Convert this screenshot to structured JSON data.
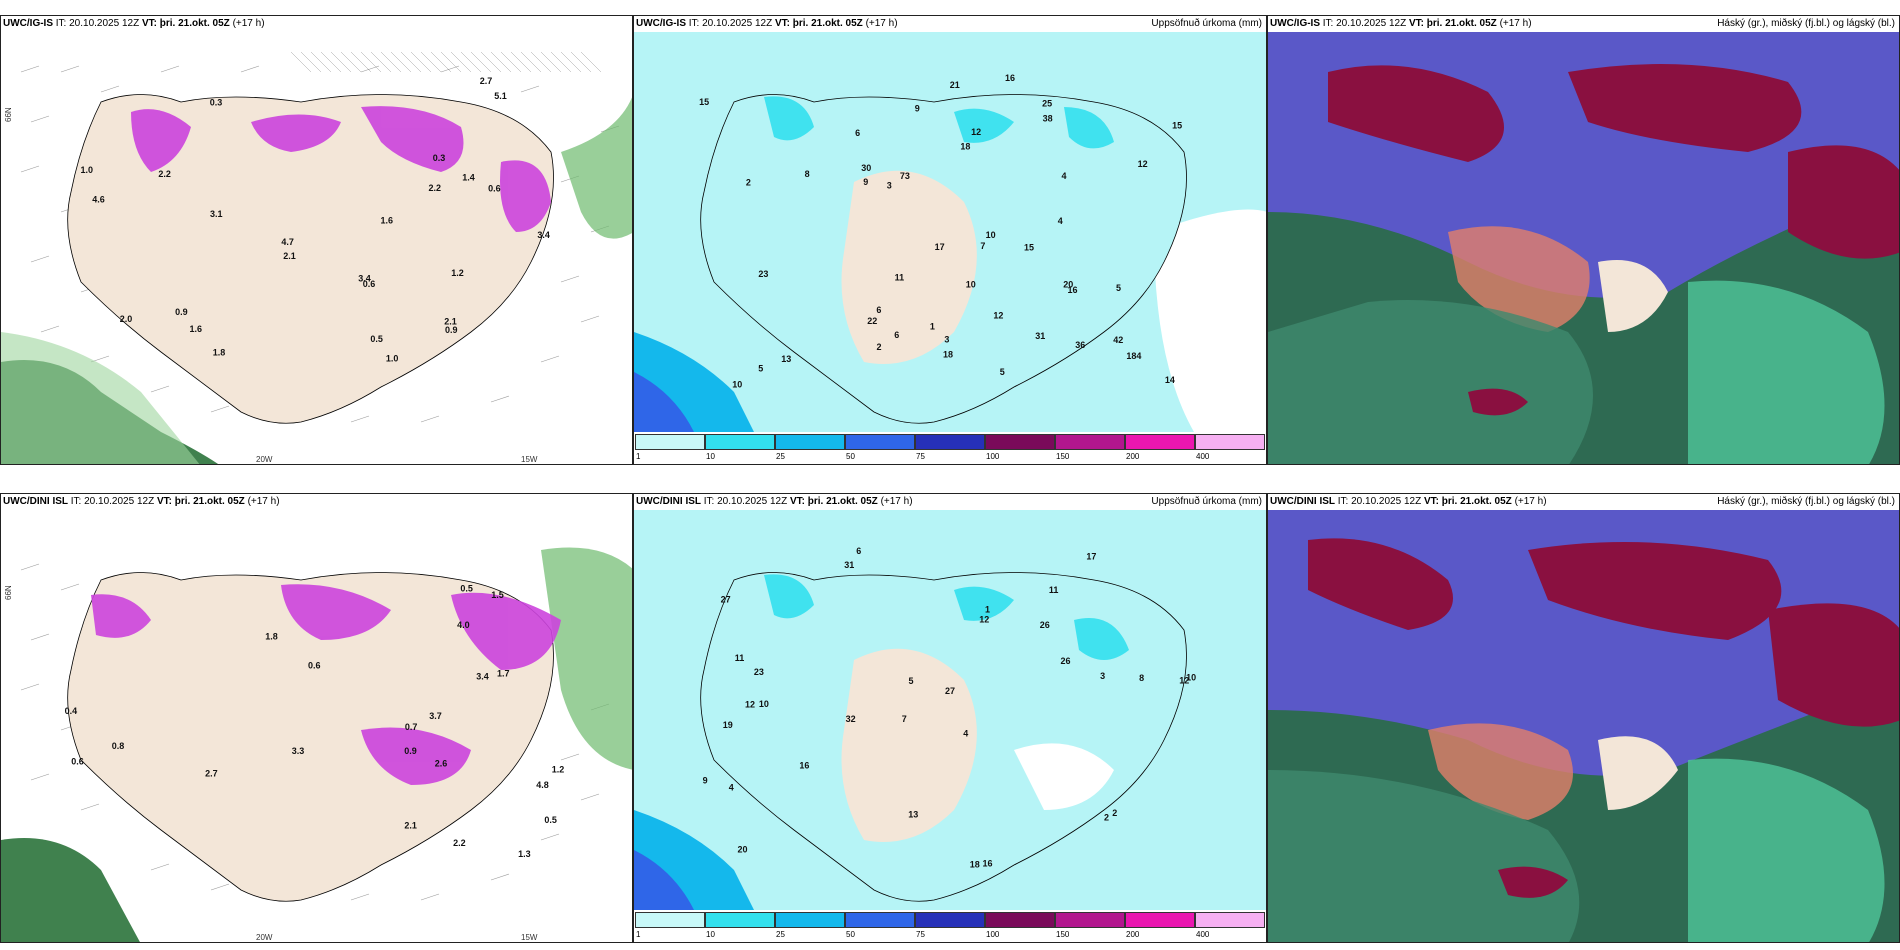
{
  "panels": [
    {
      "model": "UWC/IG-IS",
      "it": "IT: 20.10.2025 12Z",
      "vt_label": "VT:",
      "vt": "þri. 21.okt. 05Z",
      "lead": "(+17 h)",
      "title": "",
      "lon_labels": [
        "20W",
        "15W"
      ],
      "lat_labels": [
        "66N"
      ],
      "values": [
        "1.0",
        "0.3",
        "0.9",
        "2.2",
        "1.4",
        "0.5",
        "3.4",
        "3.1",
        "2.1",
        "1.6",
        "2.0",
        "1.0",
        "4.7",
        "3.4",
        "2.2",
        "2.7",
        "4.6",
        "5.1",
        "1.2",
        "0.6",
        "2.1",
        "0.6",
        "1.8",
        "0.9",
        "1.6",
        "0.3"
      ]
    },
    {
      "model": "UWC/IG-IS",
      "it": "IT: 20.10.2025 12Z",
      "vt_label": "VT:",
      "vt": "þri. 21.okt. 05Z",
      "lead": "(+17 h)",
      "title": "Uppsöfnuð úrkoma (mm)",
      "values": [
        "5",
        "5",
        "10",
        "10",
        "9",
        "16",
        "42",
        "25",
        "36",
        "22",
        "14",
        "9",
        "6",
        "21",
        "31",
        "30",
        "20",
        "23",
        "17",
        "15",
        "15",
        "13",
        "18",
        "15",
        "16",
        "38",
        "73",
        "18",
        "12",
        "12",
        "184",
        "11",
        "12",
        "10",
        "7",
        "5",
        "3",
        "4",
        "2",
        "1",
        "8",
        "6",
        "6",
        "2",
        "4",
        "3"
      ]
    },
    {
      "model": "UWC/IG-IS",
      "it": "IT: 20.10.2025 12Z",
      "vt_label": "VT:",
      "vt": "þri. 21.okt. 05Z",
      "lead": "(+17 h)",
      "title": "Háský (gr.), miðský (fj.bl.) og lágský (bl.)"
    },
    {
      "model": "UWC/DINI ISL",
      "it": "IT: 20.10.2025 12Z",
      "vt_label": "VT:",
      "vt": "þri. 21.okt. 05Z",
      "lead": "(+17 h)",
      "title": "",
      "lon_labels": [
        "20W",
        "15W"
      ],
      "lat_labels": [
        "66N"
      ],
      "values": [
        "0.9",
        "1.2",
        "3.4",
        "4.8",
        "2.1",
        "4.0",
        "1.7",
        "0.6",
        "0.5",
        "2.2",
        "3.7",
        "0.7",
        "0.6",
        "2.6",
        "2.7",
        "1.3",
        "1.5",
        "0.8",
        "0.5",
        "1.8",
        "3.3",
        "0.4"
      ]
    },
    {
      "model": "UWC/DINI ISL",
      "it": "IT: 20.10.2025 12Z",
      "vt_label": "VT:",
      "vt": "þri. 21.okt. 05Z",
      "lead": "(+17 h)",
      "title": "Uppsöfnuð úrkoma (mm)",
      "values": [
        "6",
        "11",
        "12",
        "7",
        "4",
        "10",
        "27",
        "26",
        "19",
        "12",
        "27",
        "20",
        "31",
        "32",
        "18",
        "16",
        "13",
        "17",
        "26",
        "16",
        "23",
        "12",
        "10",
        "8",
        "9",
        "11",
        "5",
        "3",
        "2",
        "4",
        "2",
        "1"
      ]
    },
    {
      "model": "UWC/DINI ISL",
      "it": "IT: 20.10.2025 12Z",
      "vt_label": "VT:",
      "vt": "þri. 21.okt. 05Z",
      "lead": "(+17 h)",
      "title": "Háský (gr.), miðský (fj.bl.) og lágský (bl.)"
    }
  ],
  "legend": {
    "labels": [
      "1",
      "10",
      "25",
      "50",
      "75",
      "100",
      "150",
      "200",
      "400"
    ],
    "colors": [
      "#c8f8f8",
      "#33e0ee",
      "#14b8ec",
      "#2f66e8",
      "#2630b8",
      "#7a0a5a",
      "#b2168e",
      "#ea16b0",
      "#f6b0f2"
    ]
  },
  "colors": {
    "land": "#f3e6d8",
    "precip_bg": "#b6f4f6",
    "snow": "#cc44dd",
    "rain_green": "#7cc67e",
    "cloud_high": "#8a1040",
    "cloud_mid": "#5a58c8",
    "cloud_low": "#2e7c5a"
  }
}
